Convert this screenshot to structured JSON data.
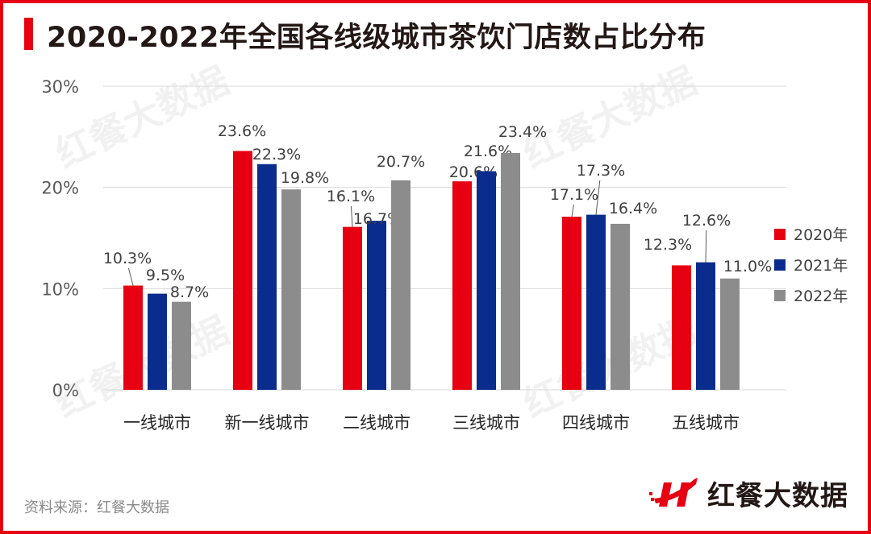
{
  "title": "2020-2022年全国各线级城市茶饮门店数占比分布",
  "source": "资料来源：红餐大数据",
  "logo_text": "红餐大数据",
  "watermark": "红餐大数据",
  "chart_data": {
    "type": "bar",
    "title": "2020-2022年全国各线级城市茶饮门店数占比分布",
    "categories": [
      "一线城市",
      "新一线城市",
      "二线城市",
      "三线城市",
      "四线城市",
      "五线城市"
    ],
    "series": [
      {
        "name": "2020年",
        "color": "#e60012",
        "values": [
          10.3,
          23.6,
          16.1,
          20.6,
          17.1,
          12.3
        ],
        "labels": [
          "10.3%",
          "23.6%",
          "16.1%",
          "20.6%",
          "17.1%",
          "12.3%"
        ]
      },
      {
        "name": "2021年",
        "color": "#0a2c8c",
        "values": [
          9.5,
          22.3,
          16.7,
          21.6,
          17.3,
          12.6
        ],
        "labels": [
          "9.5%",
          "22.3%",
          "16.7%",
          "21.6%",
          "17.3%",
          "12.6%"
        ]
      },
      {
        "name": "2022年",
        "color": "#8c8c8c",
        "values": [
          8.7,
          19.8,
          20.7,
          23.4,
          16.4,
          11.0
        ],
        "labels": [
          "8.7%",
          "19.8%",
          "20.7%",
          "23.4%",
          "16.4%",
          "11.0%"
        ]
      }
    ],
    "yticks": [
      "0%",
      "10%",
      "20%",
      "30%"
    ],
    "ylim": [
      0,
      30
    ],
    "grid": true,
    "legend_position": "right",
    "xlabel": "",
    "ylabel": ""
  }
}
